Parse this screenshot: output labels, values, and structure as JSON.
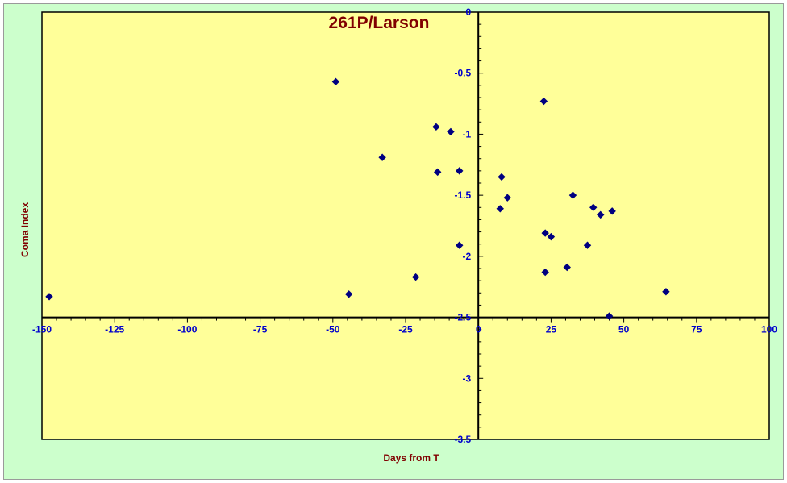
{
  "chart_data": {
    "type": "scatter",
    "title": "261P/Larson",
    "xlabel": "Days from T",
    "ylabel": "Coma Index",
    "xlim": [
      -150,
      100
    ],
    "ylim": [
      -3.5,
      0
    ],
    "x_ticks": [
      -150,
      -125,
      -100,
      -75,
      -50,
      -25,
      0,
      25,
      50,
      75,
      100
    ],
    "y_ticks": [
      0,
      -0.5,
      -1,
      -1.5,
      -2,
      -2.5,
      -3,
      -3.5
    ],
    "x_tick_labels": [
      "-150",
      "-125",
      "-100",
      "-75",
      "-50",
      "-25",
      "0",
      "25",
      "50",
      "75",
      "100"
    ],
    "y_tick_labels": [
      "0",
      "-0.5",
      "-1",
      "-1.5",
      "-2",
      "-2.5",
      "-3",
      "-3.5"
    ],
    "grid": false,
    "legend": "none",
    "colors": {
      "outer_background": "#ccffcc",
      "plot_background": "#ffff99",
      "marker": "#000080",
      "tick_labels": "#0000cc",
      "titles": "#800000",
      "axis_lines": "#000000"
    },
    "series": [
      {
        "marker": "diamond",
        "points": [
          {
            "x": -147.5,
            "y": -2.33
          },
          {
            "x": -49,
            "y": -0.57
          },
          {
            "x": -44.5,
            "y": -2.31
          },
          {
            "x": -33,
            "y": -1.19
          },
          {
            "x": -21.5,
            "y": -2.17
          },
          {
            "x": -14.5,
            "y": -0.94
          },
          {
            "x": -14,
            "y": -1.31
          },
          {
            "x": -9.5,
            "y": -0.98
          },
          {
            "x": -6.5,
            "y": -1.3
          },
          {
            "x": -6.5,
            "y": -1.91
          },
          {
            "x": 7.5,
            "y": -1.61
          },
          {
            "x": 8,
            "y": -1.35
          },
          {
            "x": 10,
            "y": -1.52
          },
          {
            "x": 22.5,
            "y": -0.73
          },
          {
            "x": 23,
            "y": -1.81
          },
          {
            "x": 23,
            "y": -2.13
          },
          {
            "x": 25,
            "y": -1.84
          },
          {
            "x": 30.5,
            "y": -2.09
          },
          {
            "x": 32.5,
            "y": -1.5
          },
          {
            "x": 37.5,
            "y": -1.91
          },
          {
            "x": 39.5,
            "y": -1.6
          },
          {
            "x": 42,
            "y": -1.66
          },
          {
            "x": 45,
            "y": -2.49
          },
          {
            "x": 46,
            "y": -1.63
          },
          {
            "x": 64.5,
            "y": -2.29
          }
        ]
      }
    ]
  }
}
